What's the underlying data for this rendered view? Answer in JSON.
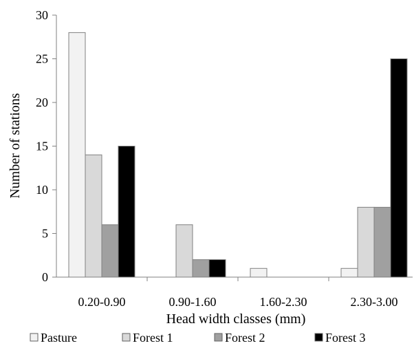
{
  "chart_data": {
    "type": "bar",
    "title": "",
    "xlabel": "Head width classes (mm)",
    "ylabel": "Number of stations",
    "ylim": [
      0,
      30
    ],
    "yticks": [
      0,
      5,
      10,
      15,
      20,
      25,
      30
    ],
    "grid": false,
    "legend_position": "bottom",
    "categories": [
      "0.20-0.90",
      "0.90-1.60",
      "1.60-2.30",
      "2.30-3.00"
    ],
    "series": [
      {
        "name": "Pasture",
        "color": "#f2f2f2",
        "values": [
          28,
          0,
          1,
          1
        ]
      },
      {
        "name": "Forest 1",
        "color": "#d9d9d9",
        "values": [
          14,
          6,
          0,
          8
        ]
      },
      {
        "name": "Forest 2",
        "color": "#a0a0a0",
        "values": [
          6,
          2,
          0,
          8
        ]
      },
      {
        "name": "Forest 3",
        "color": "#000000",
        "values": [
          15,
          2,
          0,
          25
        ]
      }
    ]
  }
}
